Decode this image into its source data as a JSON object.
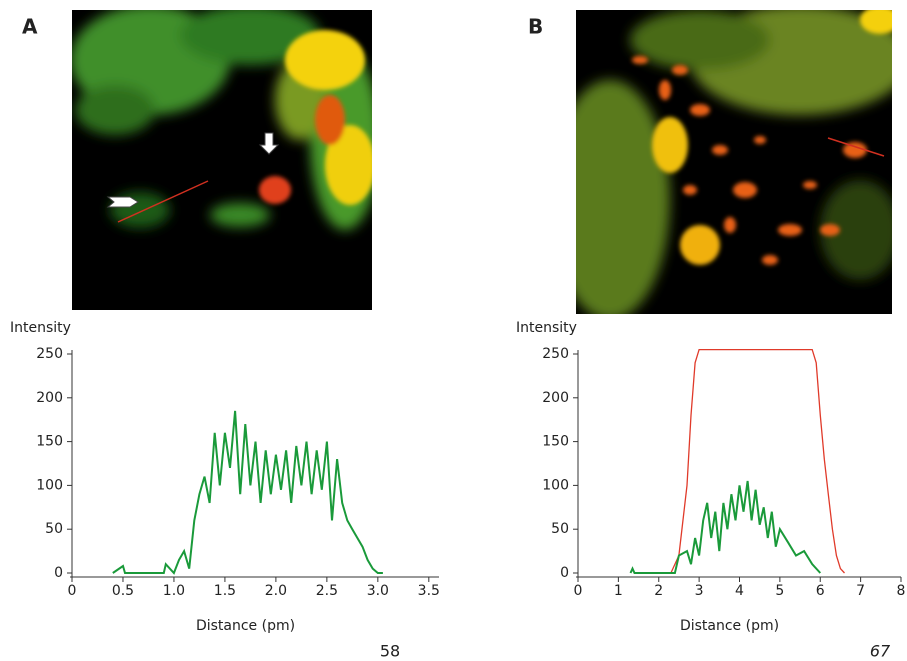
{
  "chart_data": [
    {
      "type": "line",
      "panel_label": "A",
      "page_number": "58",
      "y_label": "Intensity",
      "x_label": "Distance (pm)",
      "xlim": [
        0,
        3.6
      ],
      "ylim": [
        0,
        250
      ],
      "xticks": [
        0,
        0.5,
        {
          "value": 1,
          "label": "1.0"
        },
        1.5,
        {
          "value": 2,
          "label": "2.0"
        },
        2.5,
        {
          "value": 3,
          "label": "3.0"
        },
        3.5
      ],
      "yticks": [
        0,
        50,
        100,
        150,
        200,
        250
      ],
      "series": [
        {
          "color": "#1a9a3a",
          "x": [
            0.4,
            0.5,
            0.52,
            0.9,
            0.92,
            1.0,
            1.05,
            1.1,
            1.15,
            1.2,
            1.25,
            1.3,
            1.35,
            1.4,
            1.45,
            1.5,
            1.55,
            1.6,
            1.65,
            1.7,
            1.75,
            1.8,
            1.85,
            1.9,
            1.95,
            2.0,
            2.05,
            2.1,
            2.15,
            2.2,
            2.25,
            2.3,
            2.35,
            2.4,
            2.45,
            2.5,
            2.55,
            2.6,
            2.65,
            2.7,
            2.75,
            2.8,
            2.85,
            2.9,
            2.95,
            3.0,
            3.05
          ],
          "values": [
            0,
            8,
            0,
            0,
            10,
            0,
            15,
            25,
            5,
            60,
            90,
            110,
            80,
            160,
            100,
            160,
            120,
            185,
            90,
            170,
            100,
            150,
            80,
            140,
            90,
            135,
            95,
            140,
            80,
            145,
            100,
            150,
            90,
            140,
            95,
            150,
            60,
            130,
            80,
            60,
            50,
            40,
            30,
            15,
            5,
            0,
            0
          ]
        }
      ]
    },
    {
      "type": "line",
      "panel_label": "B",
      "page_number": "67",
      "y_label": "Intensity",
      "x_label": "Distance (pm)",
      "xlim": [
        0,
        8
      ],
      "ylim": [
        0,
        250
      ],
      "xticks": [
        0,
        1,
        2,
        3,
        4,
        5,
        6,
        7,
        8
      ],
      "yticks": [
        0,
        50,
        100,
        150,
        200,
        250
      ],
      "series": [
        {
          "color": "#e03a2a",
          "x": [
            2.3,
            2.5,
            2.7,
            2.8,
            2.9,
            3.0,
            5.8,
            5.9,
            6.0,
            6.1,
            6.2,
            6.3,
            6.4,
            6.5,
            6.6
          ],
          "values": [
            0,
            20,
            100,
            180,
            240,
            255,
            255,
            240,
            180,
            130,
            90,
            50,
            20,
            5,
            0
          ]
        },
        {
          "color": "#1a9a3a",
          "x": [
            1.3,
            1.35,
            1.4,
            2.4,
            2.5,
            2.7,
            2.8,
            2.9,
            3.0,
            3.1,
            3.2,
            3.3,
            3.4,
            3.5,
            3.6,
            3.7,
            3.8,
            3.9,
            4.0,
            4.1,
            4.2,
            4.3,
            4.4,
            4.5,
            4.6,
            4.7,
            4.8,
            4.9,
            5.0,
            5.2,
            5.4,
            5.6,
            5.8,
            6.0
          ],
          "values": [
            0,
            5,
            0,
            0,
            20,
            25,
            10,
            40,
            20,
            60,
            80,
            40,
            70,
            25,
            80,
            50,
            90,
            60,
            100,
            70,
            105,
            60,
            95,
            55,
            75,
            40,
            70,
            30,
            50,
            35,
            20,
            25,
            10,
            0
          ]
        }
      ]
    }
  ]
}
